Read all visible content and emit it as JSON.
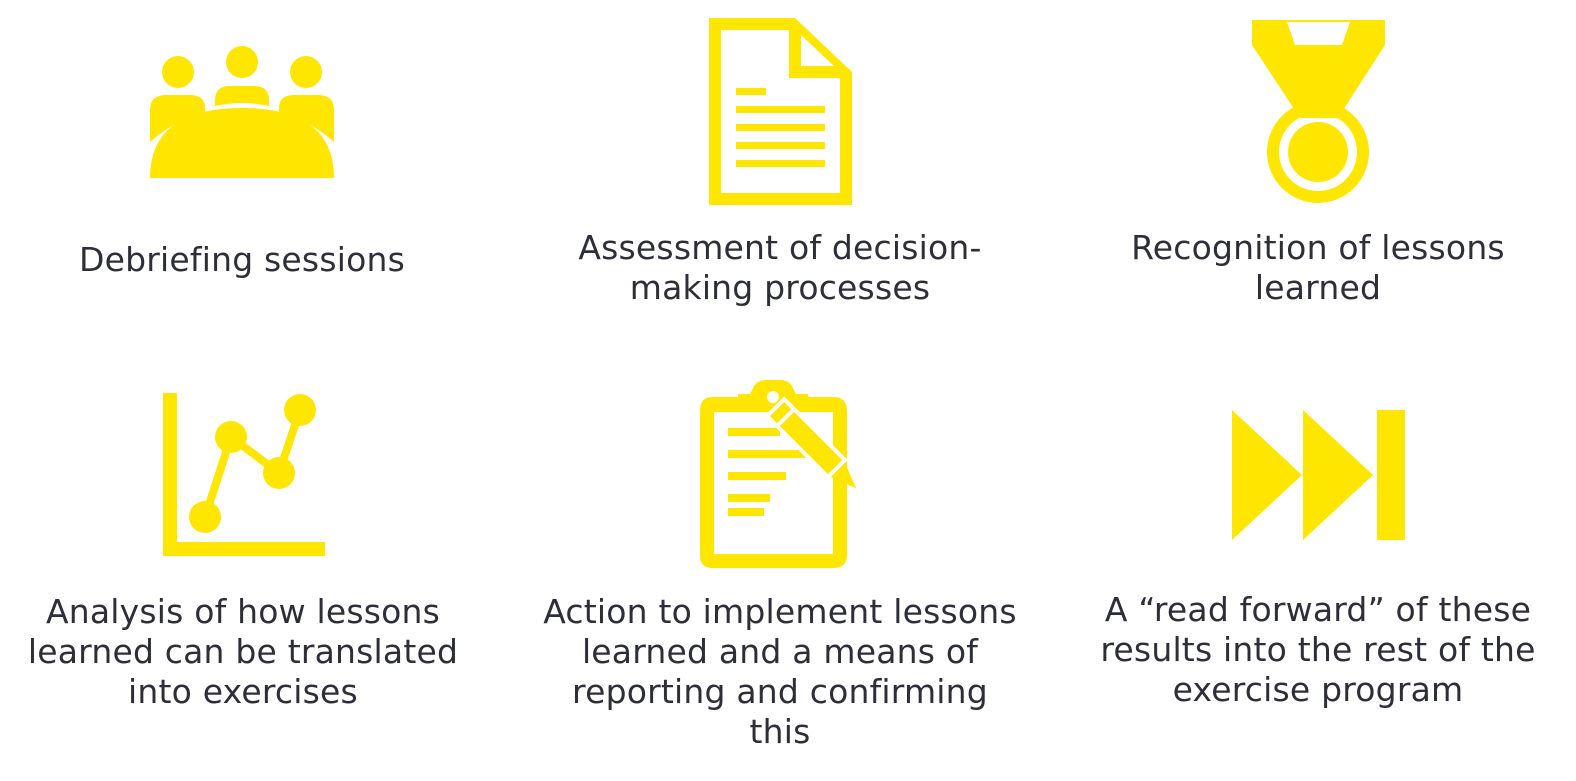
{
  "colors": {
    "icon": "#ffe600",
    "text": "#2e2e38",
    "background": "#ffffff"
  },
  "items": [
    {
      "icon": "meeting-table-icon",
      "label": "Debriefing sessions"
    },
    {
      "icon": "document-icon",
      "label": "Assessment of decision-\nmaking processes"
    },
    {
      "icon": "medal-icon",
      "label": "Recognition of lessons\nlearned"
    },
    {
      "icon": "line-chart-icon",
      "label": "Analysis of how lessons\nlearned can be translated\ninto exercises"
    },
    {
      "icon": "clipboard-pencil-icon",
      "label": "Action to implement lessons\nlearned and a means of\nreporting and confirming\nthis"
    },
    {
      "icon": "fast-forward-icon",
      "label": "A “read forward” of these\nresults into the rest of the\nexercise program"
    }
  ]
}
